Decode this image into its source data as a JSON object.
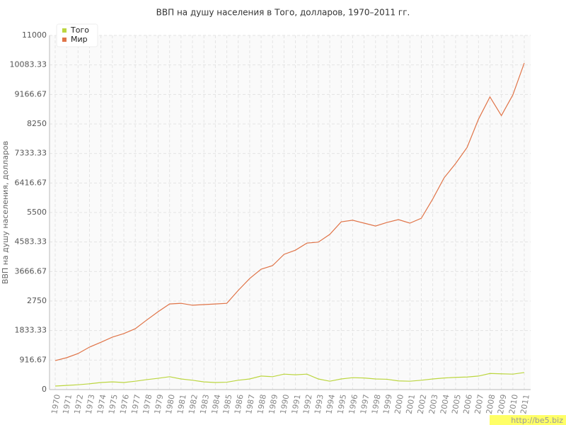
{
  "chart_data": {
    "type": "line",
    "title": "ВВП на душу населения в Того, долларов, 1970–2011 гг.",
    "y_label": "ВВП на душу населения, долларов",
    "categories": [
      "1970",
      "1971",
      "1972",
      "1973",
      "1974",
      "1975",
      "1976",
      "1977",
      "1978",
      "1979",
      "1980",
      "1981",
      "1982",
      "1983",
      "1984",
      "1985",
      "1986",
      "1987",
      "1988",
      "1989",
      "1990",
      "1991",
      "1992",
      "1993",
      "1994",
      "1995",
      "1996",
      "1997",
      "1998",
      "1999",
      "2000",
      "2001",
      "2002",
      "2003",
      "2004",
      "2005",
      "2006",
      "2007",
      "2008",
      "2009",
      "2010",
      "2011"
    ],
    "series": [
      {
        "name": "Того",
        "color": "#bcd640",
        "values": [
          110,
          130,
          150,
          180,
          220,
          240,
          220,
          260,
          310,
          350,
          400,
          330,
          290,
          240,
          220,
          230,
          290,
          330,
          420,
          400,
          480,
          460,
          480,
          330,
          260,
          330,
          370,
          360,
          330,
          320,
          270,
          260,
          290,
          330,
          360,
          380,
          390,
          420,
          500,
          490,
          480,
          530
        ]
      },
      {
        "name": "Мир",
        "color": "#e07448",
        "values": [
          900,
          990,
          1120,
          1320,
          1470,
          1630,
          1740,
          1890,
          2160,
          2420,
          2660,
          2680,
          2620,
          2640,
          2660,
          2680,
          3080,
          3450,
          3740,
          3850,
          4200,
          4330,
          4550,
          4580,
          4820,
          5210,
          5260,
          5170,
          5080,
          5190,
          5280,
          5170,
          5320,
          5920,
          6580,
          7020,
          7520,
          8400,
          9090,
          8510,
          9150,
          10140
        ]
      }
    ],
    "ylim": [
      0,
      11000
    ],
    "yticks": [
      0,
      916.67,
      1833.33,
      2750,
      3666.67,
      4583.33,
      5500,
      6416.67,
      7333.33,
      8250,
      9166.67,
      10083.33,
      11000
    ],
    "grid": true,
    "legend": "top-left"
  },
  "watermark": "http://be5.biz"
}
